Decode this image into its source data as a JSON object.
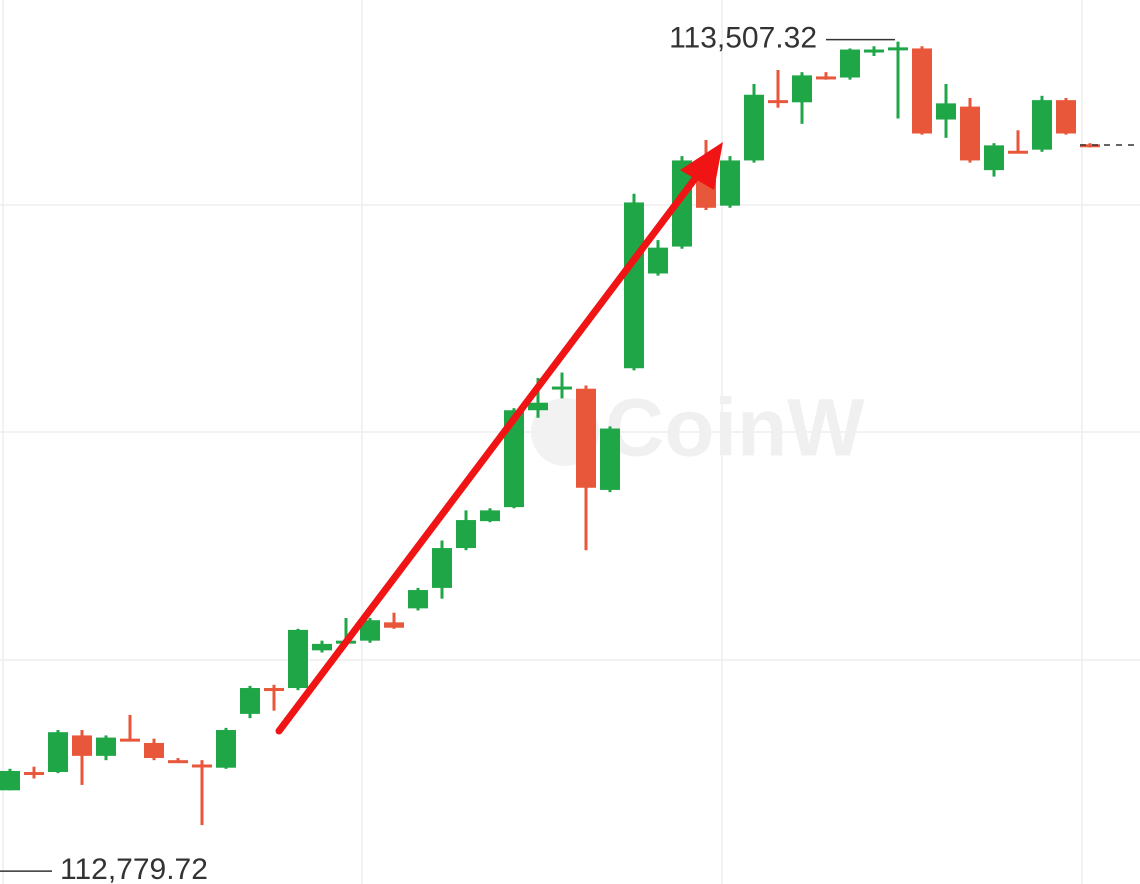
{
  "chart_data": {
    "type": "candlestick",
    "open": [
      112812,
      112829,
      112829,
      112863,
      112844,
      112860,
      112856,
      112840,
      112836,
      112833,
      112883,
      112907,
      112907,
      112942,
      112949,
      112951,
      112968,
      112981,
      113000,
      113037,
      113062,
      113075,
      113165,
      113185,
      113185,
      113091,
      113204,
      113292,
      113317,
      113395,
      113355,
      113397,
      113453,
      113451,
      113475,
      113474,
      113498,
      113500,
      113501,
      113435,
      113447,
      113388,
      113406,
      113407,
      113453,
      113412
    ],
    "high": [
      112832,
      112834,
      112868,
      112868,
      112863,
      112882,
      112860,
      112842,
      112840,
      112870,
      112909,
      112910,
      112962,
      112951,
      112972,
      112972,
      112977,
      113000,
      113044,
      113072,
      113074,
      113167,
      113195,
      113200,
      113188,
      113150,
      113366,
      113323,
      113401,
      113416,
      113401,
      113468,
      113481,
      113479,
      113479,
      113501,
      113503,
      113507.32,
      113503,
      113468,
      113455,
      113413,
      113425,
      113457,
      113455,
      113413
    ],
    "low": [
      112812,
      112823,
      112828,
      112817,
      112840,
      112858,
      112840,
      112838,
      112779.72,
      112832,
      112879,
      112886,
      112905,
      112940,
      112949,
      112949,
      112962,
      112979,
      112990,
      113035,
      113061,
      113074,
      113158,
      113176,
      113035,
      113089,
      113202,
      113290,
      113315,
      113351,
      113353,
      113395,
      113446,
      113431,
      113472,
      113472,
      113494,
      113436,
      113421,
      113418,
      113395,
      113382,
      113404,
      113405,
      113421,
      113409
    ],
    "close": [
      112830,
      112827,
      112866,
      112844,
      112861,
      112858,
      112842,
      112838,
      112834,
      112868,
      112907,
      112905,
      112961,
      112948,
      112951,
      112970,
      112963,
      112998,
      113037,
      113063,
      113072,
      113165,
      113172,
      113187,
      113093,
      113148,
      113358,
      113316,
      113397,
      113353,
      113397,
      113458,
      113451,
      113476,
      113474,
      113500,
      113500,
      113502,
      113422,
      113450,
      113397,
      113411,
      113404,
      113453,
      113422,
      113410
    ],
    "up_color": "#1fa647",
    "down_color": "#e9573b",
    "ylim": [
      112725,
      113546
    ],
    "annotations": [
      {
        "value": 113507.32,
        "label": "113,507.32"
      },
      {
        "value": 112779.72,
        "label": "112,779.72"
      }
    ],
    "watermark": "CoinW"
  }
}
